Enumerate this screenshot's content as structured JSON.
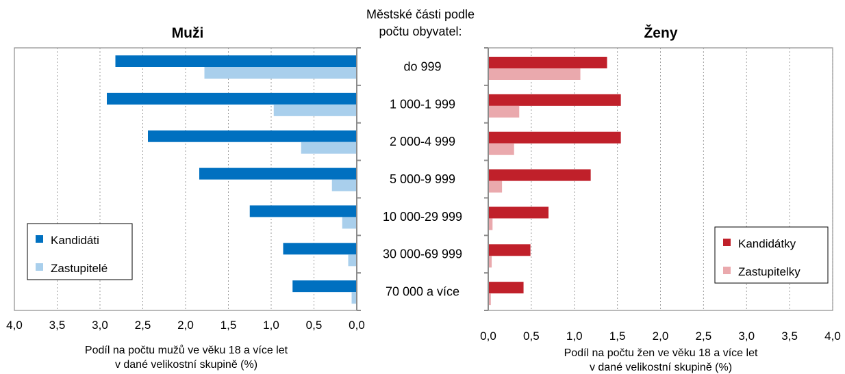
{
  "header": {
    "category_title_line1": "Městské části podle",
    "category_title_line2": "počtu obyvatel:"
  },
  "chart_data": [
    {
      "type": "bar",
      "orientation": "horizontal",
      "title": "Muži",
      "x_direction": "reversed",
      "categories": [
        "do 999",
        "1 000-1 999",
        "2 000-4 999",
        "5 000-9 999",
        "10 000-29 999",
        "30 000-69 999",
        "70 000 a více"
      ],
      "series": [
        {
          "name": "Kandidáti",
          "color": "#0070c0",
          "values": [
            2.82,
            2.92,
            2.44,
            1.84,
            1.25,
            0.86,
            0.75
          ]
        },
        {
          "name": "Zastupitelé",
          "color": "#a9cfec",
          "values": [
            1.78,
            0.97,
            0.65,
            0.29,
            0.17,
            0.1,
            0.06
          ]
        }
      ],
      "xlim": [
        0,
        4
      ],
      "xticks": [
        "4,0",
        "3,5",
        "3,0",
        "2,5",
        "2,0",
        "1,5",
        "1,0",
        "0,5",
        "0,0"
      ],
      "xlabel_line1": "Podíl na počtu mužů ve věku 18 a více let",
      "xlabel_line2": "v dané velikostní skupině (%)",
      "grid": true,
      "legend": "bottom-left"
    },
    {
      "type": "bar",
      "orientation": "horizontal",
      "title": "Ženy",
      "categories": [
        "do 999",
        "1 000-1 999",
        "2 000-4 999",
        "5 000-9 999",
        "10 000-29 999",
        "30 000-69 999",
        "70 000 a více"
      ],
      "series": [
        {
          "name": "Kandidátky",
          "color": "#c0202a",
          "values": [
            1.38,
            1.54,
            1.54,
            1.19,
            0.7,
            0.49,
            0.41
          ]
        },
        {
          "name": "Zastupitelky",
          "color": "#eaa9ad",
          "values": [
            1.07,
            0.36,
            0.3,
            0.16,
            0.05,
            0.04,
            0.03
          ]
        }
      ],
      "xlim": [
        0,
        4
      ],
      "xticks": [
        "0,0",
        "0,5",
        "1,0",
        "1,5",
        "2,0",
        "2,5",
        "3,0",
        "3,5",
        "4,0"
      ],
      "xlabel_line1": "Podíl na počtu žen ve věku 18 a více let",
      "xlabel_line2": "v dané velikostní skupině (%)",
      "grid": true,
      "legend": "bottom-right"
    }
  ]
}
